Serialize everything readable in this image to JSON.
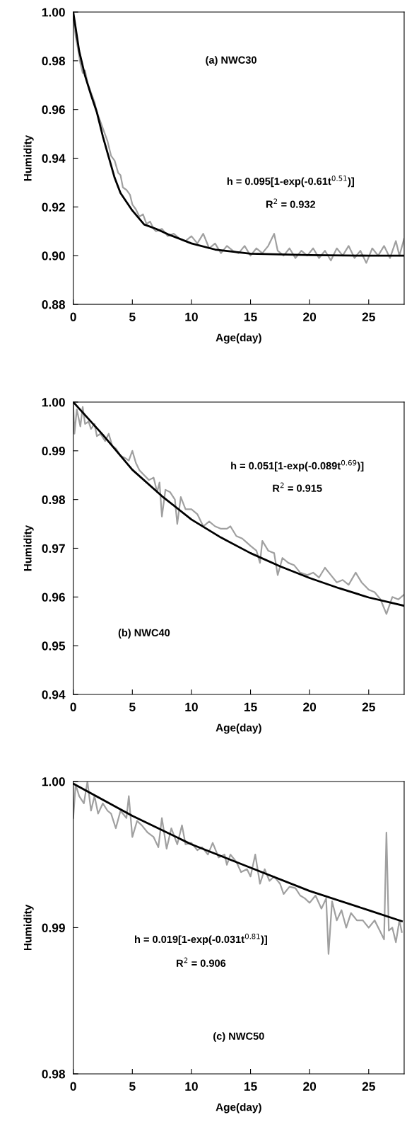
{
  "chart_data": [
    {
      "type": "line",
      "xlabel": "Age(day)",
      "ylabel": "Humidity",
      "xlim": [
        0,
        28
      ],
      "xticks": [
        0,
        5,
        10,
        15,
        20,
        25
      ],
      "ylim": [
        0.88,
        1.0
      ],
      "yticks": [
        {
          "value": 0.88,
          "label": "0.88"
        },
        {
          "value": 0.9,
          "label": "0.90"
        },
        {
          "value": 0.92,
          "label": "0.92"
        },
        {
          "value": 0.94,
          "label": "0.94"
        },
        {
          "value": 0.96,
          "label": "0.96"
        },
        {
          "value": 0.98,
          "label": "0.98"
        },
        {
          "value": 1.0,
          "label": "1.00"
        }
      ],
      "grid": false,
      "legend": false,
      "annotations": [
        "(a) NWC30",
        "h = 0.095[1-exp(-0.61t$^{0.51}$)]",
        "R$^{2}$ = 0.932"
      ],
      "series": [
        {
          "color": "#a0a0a0",
          "x": [
            0,
            0.2,
            0.4,
            0.6,
            0.8,
            1,
            1.2,
            1.5,
            1.8,
            2,
            2.3,
            2.6,
            2.9,
            3.2,
            3.5,
            3.8,
            4,
            4.2,
            4.5,
            4.8,
            5,
            5.3,
            5.6,
            5.9,
            6.2,
            6.5,
            6.8,
            7,
            7.5,
            8,
            8.5,
            9,
            9.5,
            10,
            10.5,
            11,
            11.5,
            12,
            12.5,
            13,
            13.5,
            14,
            14.5,
            15,
            15.5,
            16,
            16.5,
            17,
            17.3,
            17.8,
            18.3,
            18.8,
            19.3,
            19.8,
            20.3,
            20.8,
            21.3,
            21.8,
            22.3,
            22.8,
            23.3,
            23.8,
            24.3,
            24.8,
            25.3,
            25.8,
            26.3,
            26.8,
            27.3,
            27.6,
            28
          ],
          "values": [
            0.998,
            0.99,
            0.985,
            0.979,
            0.975,
            0.976,
            0.971,
            0.967,
            0.963,
            0.959,
            0.955,
            0.951,
            0.947,
            0.941,
            0.939,
            0.934,
            0.933,
            0.928,
            0.927,
            0.925,
            0.921,
            0.919,
            0.916,
            0.917,
            0.913,
            0.914,
            0.911,
            0.91,
            0.911,
            0.908,
            0.909,
            0.907,
            0.906,
            0.908,
            0.905,
            0.909,
            0.903,
            0.905,
            0.901,
            0.904,
            0.902,
            0.901,
            0.904,
            0.9,
            0.903,
            0.901,
            0.904,
            0.909,
            0.902,
            0.9,
            0.903,
            0.899,
            0.902,
            0.9,
            0.903,
            0.899,
            0.902,
            0.898,
            0.903,
            0.9,
            0.904,
            0.899,
            0.902,
            0.897,
            0.903,
            0.9,
            0.904,
            0.899,
            0.906,
            0.9,
            0.907
          ]
        },
        {
          "color": "#000000",
          "x": [
            0,
            0.5,
            1,
            1.5,
            2,
            2.5,
            3,
            3.5,
            4,
            5,
            6,
            7,
            8,
            10,
            12,
            15,
            20,
            25,
            28
          ],
          "values": [
            1.0,
            0.984,
            0.9738,
            0.966,
            0.9588,
            0.949,
            0.9405,
            0.932,
            0.9257,
            0.9185,
            0.9128,
            0.911,
            0.9088,
            0.905,
            0.9025,
            0.9008,
            0.9002,
            0.9,
            0.9
          ]
        }
      ]
    },
    {
      "type": "line",
      "xlabel": "Age(day)",
      "ylabel": "Humidity",
      "xlim": [
        0,
        28
      ],
      "xticks": [
        0,
        5,
        10,
        15,
        20,
        25
      ],
      "ylim": [
        0.94,
        1.0
      ],
      "yticks": [
        {
          "value": 0.94,
          "label": "0.94"
        },
        {
          "value": 0.95,
          "label": "0.95"
        },
        {
          "value": 0.96,
          "label": "0.96"
        },
        {
          "value": 0.97,
          "label": "0.97"
        },
        {
          "value": 0.98,
          "label": "0.98"
        },
        {
          "value": 0.99,
          "label": "0.99"
        },
        {
          "value": 1.0,
          "label": "1.00"
        }
      ],
      "grid": false,
      "legend": false,
      "annotations": [
        "(b) NWC40",
        "h = 0.051[1-exp(-0.089t$^{0.69}$)]",
        "R$^{2}$ = 0.915"
      ],
      "series": [
        {
          "color": "#a0a0a0",
          "x": [
            0,
            0.1,
            0.3,
            0.6,
            0.8,
            1,
            1.3,
            1.5,
            1.8,
            2,
            2.3,
            2.7,
            3,
            3.3,
            3.6,
            4,
            4.4,
            4.7,
            5,
            5.3,
            5.6,
            6,
            6.4,
            6.8,
            7.1,
            7.3,
            7.5,
            7.8,
            8.2,
            8.6,
            8.8,
            9.1,
            9.5,
            10,
            10.5,
            11,
            11.5,
            12,
            12.5,
            13,
            13.3,
            13.8,
            14.3,
            15,
            15.5,
            15.8,
            16,
            16.5,
            17,
            17.3,
            17.7,
            18.2,
            18.7,
            19.2,
            19.8,
            20.3,
            20.8,
            21.3,
            21.8,
            22.3,
            22.8,
            23.3,
            23.9,
            24.4,
            25,
            25.5,
            26,
            26.5,
            27,
            27.5,
            28
          ],
          "values": [
            0.9995,
            0.9935,
            0.9985,
            0.995,
            0.999,
            0.9955,
            0.996,
            0.9945,
            0.9955,
            0.993,
            0.9935,
            0.992,
            0.9935,
            0.991,
            0.9905,
            0.989,
            0.9885,
            0.988,
            0.99,
            0.9875,
            0.986,
            0.985,
            0.984,
            0.9845,
            0.9815,
            0.9835,
            0.9765,
            0.982,
            0.9815,
            0.98,
            0.975,
            0.9805,
            0.978,
            0.978,
            0.977,
            0.9745,
            0.9755,
            0.9745,
            0.974,
            0.974,
            0.9745,
            0.9725,
            0.972,
            0.9705,
            0.9695,
            0.967,
            0.9715,
            0.9695,
            0.969,
            0.9645,
            0.968,
            0.967,
            0.9665,
            0.965,
            0.9645,
            0.965,
            0.964,
            0.966,
            0.9645,
            0.963,
            0.9635,
            0.9625,
            0.965,
            0.963,
            0.9615,
            0.961,
            0.9595,
            0.9565,
            0.96,
            0.9595,
            0.9605
          ]
        },
        {
          "color": "#000000",
          "x": [
            0,
            2.5,
            5,
            7.5,
            10,
            12.5,
            15,
            17.5,
            20,
            22.5,
            25,
            28
          ],
          "values": [
            1.0,
            0.9933,
            0.9861,
            0.9807,
            0.9759,
            0.9722,
            0.969,
            0.9663,
            0.9639,
            0.9618,
            0.9599,
            0.9582
          ]
        }
      ]
    },
    {
      "type": "line",
      "xlabel": "Age(day)",
      "ylabel": "Humidity",
      "xlim": [
        0,
        28
      ],
      "xticks": [
        0,
        5,
        10,
        15,
        20,
        25
      ],
      "ylim": [
        0.98,
        1.0
      ],
      "yticks": [
        {
          "value": 0.98,
          "label": "0.98"
        },
        {
          "value": 0.99,
          "label": "0.99"
        },
        {
          "value": 1.0,
          "label": "1.00"
        }
      ],
      "grid": false,
      "legend": false,
      "annotations": [
        "(c) NWC50",
        "h = 0.019[1-exp(-0.031t$^{0.81}$)]",
        "R$^{2}$ = 0.906"
      ],
      "series": [
        {
          "color": "#a0a0a0",
          "x": [
            0,
            0.2,
            0.5,
            0.9,
            1.2,
            1.5,
            1.8,
            2.1,
            2.5,
            2.9,
            3.2,
            3.6,
            4,
            4.5,
            4.7,
            5,
            5.4,
            5.8,
            6.3,
            6.8,
            7.2,
            7.5,
            7.9,
            8.3,
            8.8,
            9.2,
            9.5,
            10,
            10.5,
            10.9,
            11.4,
            11.8,
            12.3,
            12.8,
            13,
            13.3,
            13.8,
            14.2,
            14.7,
            15,
            15.4,
            15.8,
            16.2,
            16.6,
            17,
            17.5,
            17.8,
            18.3,
            18.8,
            19.2,
            19.6,
            20,
            20.5,
            21,
            21.4,
            21.6,
            21.9,
            22.3,
            22.7,
            23.1,
            23.5,
            24,
            24.5,
            25,
            25.5,
            26,
            26.3,
            26.5,
            26.7,
            27,
            27.3,
            27.6,
            27.8
          ],
          "values": [
            0.9975,
            0.9998,
            0.999,
            0.9985,
            1.0,
            0.998,
            0.999,
            0.9978,
            0.9985,
            0.998,
            0.9978,
            0.9968,
            0.998,
            0.9975,
            0.999,
            0.9962,
            0.9973,
            0.997,
            0.9965,
            0.9962,
            0.9955,
            0.9975,
            0.9954,
            0.9968,
            0.9957,
            0.997,
            0.9957,
            0.9958,
            0.9953,
            0.9955,
            0.995,
            0.9958,
            0.9948,
            0.995,
            0.9943,
            0.995,
            0.9945,
            0.9938,
            0.994,
            0.9935,
            0.995,
            0.993,
            0.994,
            0.9932,
            0.9935,
            0.993,
            0.9923,
            0.9928,
            0.9927,
            0.9922,
            0.992,
            0.9917,
            0.9922,
            0.9913,
            0.992,
            0.9882,
            0.9918,
            0.9905,
            0.9912,
            0.99,
            0.991,
            0.9905,
            0.9905,
            0.99,
            0.9905,
            0.9897,
            0.9892,
            0.9965,
            0.9898,
            0.99,
            0.989,
            0.9905,
            0.9897
          ]
        },
        {
          "color": "#000000",
          "x": [
            0,
            5,
            10,
            15,
            20,
            25,
            27.8
          ],
          "values": [
            0.99985,
            0.99765,
            0.9957,
            0.9941,
            0.99251,
            0.99119,
            0.99044
          ]
        }
      ]
    }
  ]
}
